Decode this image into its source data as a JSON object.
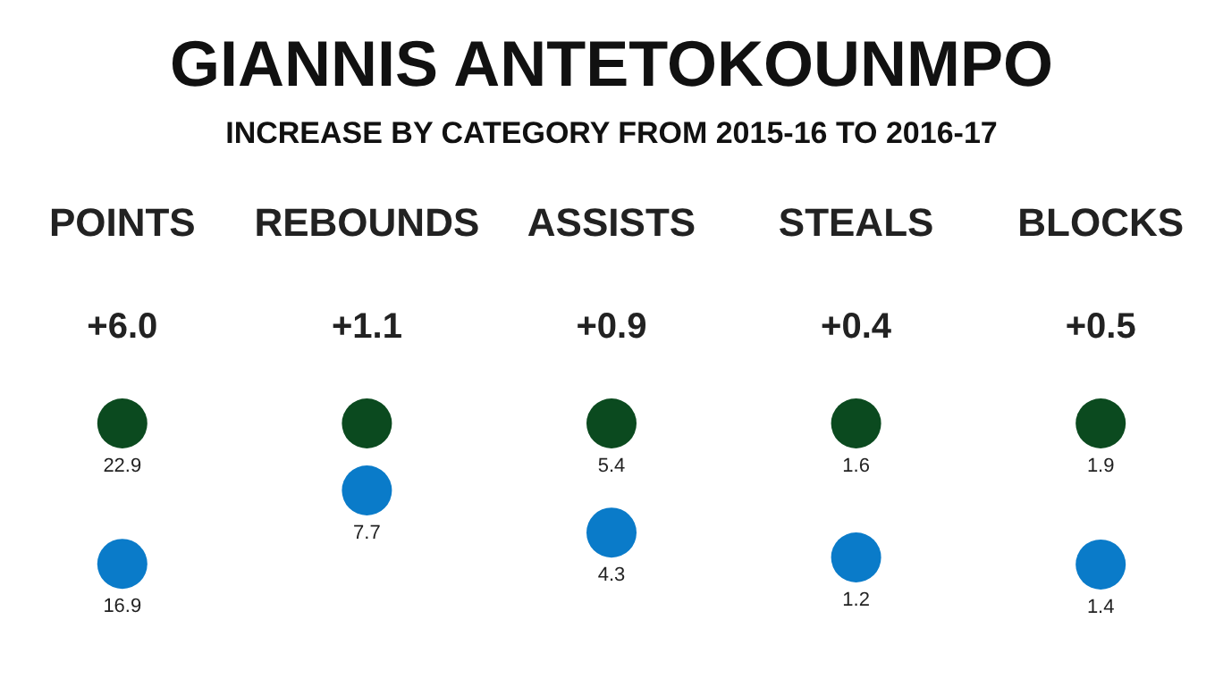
{
  "chart_data": {
    "type": "other",
    "title": "GIANNIS ANTETOKOUNMPO",
    "subtitle": "INCREASE BY CATEGORY FROM 2015-16 TO 2016-17",
    "categories": [
      "POINTS",
      "REBOUNDS",
      "ASSISTS",
      "STEALS",
      "BLOCKS"
    ],
    "annotations": [
      {
        "text": "+6.0",
        "x": "POINTS"
      },
      {
        "text": "+1.1",
        "x": "REBOUNDS"
      },
      {
        "text": "+0.9",
        "x": "ASSISTS"
      },
      {
        "text": "+0.4",
        "x": "STEALS"
      },
      {
        "text": "+0.5",
        "x": "BLOCKS"
      }
    ],
    "series": [
      {
        "color": "#0b4a1f",
        "values": [
          22.9,
          null,
          5.4,
          1.6,
          1.9
        ],
        "value_labels": [
          "22.9",
          null,
          "5.4",
          "1.6",
          "1.9"
        ]
      },
      {
        "color": "#0a7bc9",
        "values": [
          16.9,
          7.7,
          4.3,
          1.2,
          1.4
        ],
        "value_labels": [
          "16.9",
          "7.7",
          "4.3",
          "1.2",
          "1.4"
        ]
      }
    ]
  }
}
